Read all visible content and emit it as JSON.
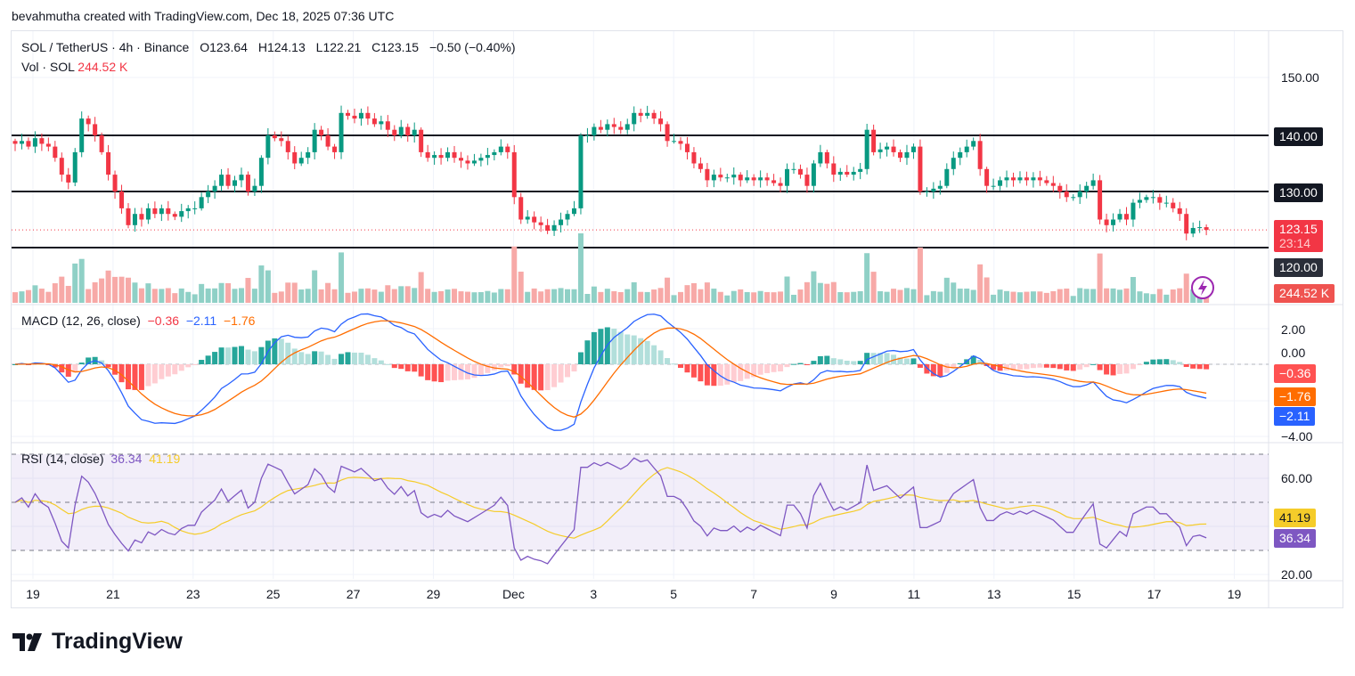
{
  "credit": "bevahmutha created with TradingView.com, Dec 18, 2025 07:36 UTC",
  "legend": {
    "symbol": "SOL / TetherUS · 4h · Binance",
    "open": "O123.64",
    "high": "H124.13",
    "low": "L122.21",
    "close": "C123.15",
    "change": "−0.50 (−0.40%)",
    "vol_label": "Vol · SOL",
    "vol_value": "244.52 K"
  },
  "macd_legend": {
    "label": "MACD (12, 26, close)",
    "hist": "−0.36",
    "macd": "−2.11",
    "signal": "−1.76"
  },
  "rsi_legend": {
    "label": "RSI (14, close)",
    "rsi": "36.34",
    "ma": "41.19"
  },
  "price_axis": {
    "tick_150": "150.00",
    "level_140": "140.00",
    "level_130": "130.00",
    "level_120": "120.00",
    "current_price": "123.15",
    "countdown": "23:14",
    "volume": "244.52 K"
  },
  "macd_axis": {
    "tick_2": "2.00",
    "tick_0": "0.00",
    "tick_m4": "−4.00",
    "hist": "−0.36",
    "signal": "−1.76",
    "macd": "−2.11"
  },
  "rsi_axis": {
    "tick_60": "60.00",
    "tick_20": "20.00",
    "ma": "41.19",
    "rsi": "36.34"
  },
  "date_labels": [
    "19",
    "21",
    "23",
    "25",
    "27",
    "29",
    "Dec",
    "3",
    "5",
    "7",
    "9",
    "11",
    "13",
    "15",
    "17",
    "19"
  ],
  "logo": "TradingView",
  "colors": {
    "up": "#089981",
    "down": "#f23645",
    "macd": "#2962ff",
    "signal": "#ff6d00",
    "rsi": "#7e57c2",
    "rsi_ma": "#f5cc2a"
  },
  "chart_data": {
    "type": "candlestick",
    "title": "SOL / TetherUS 4h",
    "interval": "4h",
    "x_range": [
      "Nov 18",
      "Dec 18"
    ],
    "ylim": [
      118,
      151
    ],
    "horizontal_levels": [
      140,
      130,
      120
    ],
    "last_candle": {
      "open": 123.64,
      "high": 124.13,
      "low": 122.21,
      "close": 123.15,
      "volume_k": 244.52
    },
    "close": [
      138.5,
      139,
      138,
      139.5,
      138.5,
      138,
      136,
      133,
      131.6,
      137,
      143,
      142,
      140,
      137,
      133,
      130,
      127,
      124,
      126,
      125,
      127,
      126,
      127,
      126,
      125.5,
      126.5,
      127,
      127,
      129,
      130,
      131,
      133,
      131,
      132,
      133,
      130,
      131,
      136,
      140,
      139.5,
      139,
      137,
      135,
      136,
      137,
      141,
      140,
      138,
      137,
      144,
      143.5,
      143,
      144,
      143,
      142,
      142.5,
      141,
      140,
      141.5,
      140,
      141,
      137,
      136,
      136.5,
      136,
      137,
      136,
      135.5,
      135,
      135.5,
      136,
      136.5,
      137,
      138,
      137,
      129,
      125,
      125.5,
      124.5,
      124,
      123,
      124,
      125,
      126,
      127,
      140,
      140,
      141.5,
      141,
      142,
      141.5,
      141,
      142,
      144,
      143.5,
      144,
      143,
      142,
      139,
      139,
      138.5,
      137,
      135,
      134,
      132,
      133,
      132.5,
      132.5,
      133,
      132,
      132.5,
      132,
      132.5,
      132,
      131.5,
      131,
      134,
      134,
      133,
      131,
      135,
      137,
      135,
      133,
      133.5,
      133,
      133.5,
      134,
      141,
      137,
      137.5,
      138,
      137,
      136,
      137,
      138,
      130,
      130,
      130.5,
      131,
      134,
      136,
      137,
      138,
      139,
      134,
      131,
      131,
      132,
      132.5,
      132,
      132.5,
      132,
      132.5,
      132,
      131.5,
      131,
      130,
      129,
      129,
      130,
      131,
      132,
      125,
      124,
      125,
      126,
      125,
      128,
      128.5,
      129,
      129,
      128,
      128,
      127,
      126,
      122.5,
      123.5,
      123.64,
      123.15
    ],
    "macd": {
      "fast": 12,
      "slow": 26,
      "signal": 9,
      "ylim": [
        -4.5,
        2.5
      ],
      "last": {
        "hist": -0.36,
        "macd": -2.11,
        "signal": -1.76
      }
    },
    "rsi": {
      "length": 14,
      "ylim": [
        17,
        78
      ],
      "bands": [
        70,
        50,
        30
      ],
      "last": {
        "rsi": 36.34,
        "ma": 41.19
      }
    }
  }
}
